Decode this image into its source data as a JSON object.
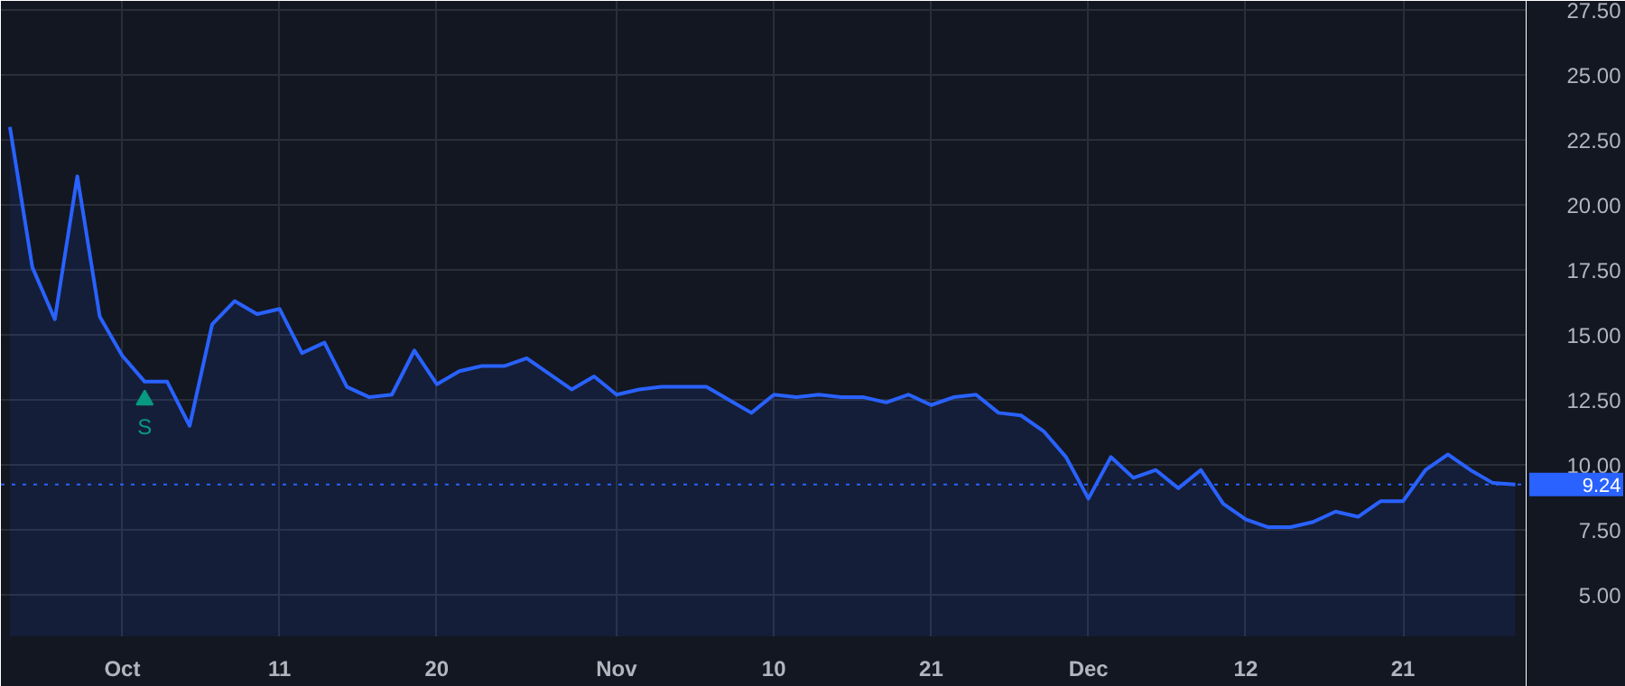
{
  "chart_data": {
    "type": "area",
    "categories": [
      null,
      null,
      null,
      null,
      null,
      "Oct",
      null,
      null,
      null,
      null,
      null,
      null,
      "11",
      null,
      null,
      null,
      null,
      null,
      null,
      "20",
      null,
      null,
      null,
      null,
      null,
      null,
      null,
      "Nov",
      null,
      null,
      null,
      null,
      null,
      null,
      "10",
      null,
      null,
      null,
      null,
      null,
      null,
      "21",
      null,
      null,
      null,
      null,
      null,
      null,
      "Dec",
      null,
      null,
      null,
      null,
      null,
      null,
      "12",
      null,
      null,
      null,
      null,
      null,
      null,
      "21",
      null,
      null,
      null,
      null,
      null
    ],
    "series": [
      {
        "color": "#2962ff",
        "values": [
          23.0,
          17.6,
          15.6,
          21.1,
          15.7,
          14.2,
          13.2,
          13.2,
          11.5,
          15.4,
          16.3,
          15.8,
          16.0,
          14.3,
          14.7,
          13.0,
          12.6,
          12.7,
          14.4,
          13.1,
          13.6,
          13.8,
          13.8,
          14.1,
          13.5,
          12.9,
          13.4,
          12.7,
          12.9,
          13.0,
          13.0,
          13.0,
          12.5,
          12.0,
          12.7,
          12.6,
          12.7,
          12.6,
          12.6,
          12.4,
          12.7,
          12.3,
          12.6,
          12.7,
          12.0,
          11.9,
          11.3,
          10.3,
          8.7,
          10.3,
          9.5,
          9.8,
          9.1,
          9.8,
          8.5,
          7.9,
          7.6,
          7.6,
          7.8,
          8.2,
          8.0,
          8.6,
          8.6,
          9.8,
          10.4,
          9.8,
          9.3,
          9.24
        ]
      },
      {
        "type": "scatter",
        "marker": "triangle",
        "color": "#089981",
        "values": [
          null,
          null,
          null,
          null,
          null,
          null,
          12.5,
          null,
          null,
          null,
          null,
          null,
          null,
          null,
          null,
          null,
          null,
          null,
          null,
          null,
          null,
          null,
          null,
          null,
          null,
          null,
          null,
          null,
          null,
          null,
          null,
          null,
          null,
          null,
          null,
          null,
          null,
          null,
          null,
          null,
          null,
          null,
          null,
          null,
          null,
          null,
          null,
          null,
          null,
          null,
          null,
          null,
          null,
          null,
          null,
          null,
          null,
          null,
          null,
          null,
          null,
          null,
          null,
          null,
          null,
          null,
          null,
          null
        ]
      }
    ],
    "annotations": [
      "S"
    ],
    "ref_lines": [
      {
        "axis": "y",
        "value": 9.24,
        "label": "9.24",
        "color": "#2962ff",
        "line_style": "dotted"
      }
    ],
    "ylim": [
      3.4,
      27.85
    ],
    "yticks": [
      {
        "value": 5,
        "label": "5.00"
      },
      {
        "value": 7.5,
        "label": "7.50"
      },
      {
        "value": 10,
        "label": "10.00"
      },
      {
        "value": 12.5,
        "label": "12.50"
      },
      {
        "value": 15,
        "label": "15.00"
      },
      {
        "value": 17.5,
        "label": "17.50"
      },
      {
        "value": 20,
        "label": "20.00"
      },
      {
        "value": 22.5,
        "label": "22.50"
      },
      {
        "value": 25,
        "label": "25.00"
      },
      {
        "value": 27.5,
        "label": "27.50"
      }
    ],
    "grid": true,
    "marker": "none",
    "line_style": "solid"
  }
}
